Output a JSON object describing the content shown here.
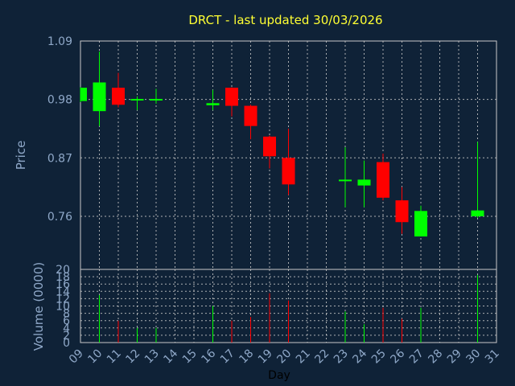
{
  "title": "DRCT - last updated 30/03/2026",
  "colors": {
    "background": "#0f2237",
    "title": "#ffff33",
    "axis_text": "#8fa8c8",
    "up": "#00ff00",
    "down": "#ff0000",
    "grid": "#c8c8c8"
  },
  "chart_data": [
    {
      "type": "candlestick",
      "ylabel": "Price",
      "xlabel": "Day",
      "ylim": [
        0.66,
        1.09
      ],
      "yticks": [
        "0.76",
        "0.87",
        "0.98",
        "1.09"
      ],
      "xlim": [
        9,
        31
      ],
      "xticks": [
        "09",
        "10",
        "11",
        "12",
        "13",
        "14",
        "15",
        "16",
        "17",
        "18",
        "19",
        "20",
        "21",
        "22",
        "23",
        "24",
        "25",
        "26",
        "27",
        "28",
        "29",
        "30",
        "31"
      ],
      "grid": true,
      "candles": [
        {
          "day": 9,
          "open": 0.977,
          "close": 1.002,
          "high": 1.003,
          "low": 0.975
        },
        {
          "day": 10,
          "open": 0.958,
          "close": 1.012,
          "high": 1.07,
          "low": 0.93
        },
        {
          "day": 11,
          "open": 1.002,
          "close": 0.97,
          "high": 1.03,
          "low": 0.965
        },
        {
          "day": 12,
          "open": 0.978,
          "close": 0.981,
          "high": 0.986,
          "low": 0.96
        },
        {
          "day": 13,
          "open": 0.978,
          "close": 0.981,
          "high": 1.0,
          "low": 0.972
        },
        {
          "day": 16,
          "open": 0.969,
          "close": 0.973,
          "high": 0.998,
          "low": 0.96
        },
        {
          "day": 17,
          "open": 1.002,
          "close": 0.968,
          "high": 1.003,
          "low": 0.948
        },
        {
          "day": 18,
          "open": 0.968,
          "close": 0.93,
          "high": 0.97,
          "low": 0.905
        },
        {
          "day": 19,
          "open": 0.91,
          "close": 0.873,
          "high": 0.912,
          "low": 0.85
        },
        {
          "day": 20,
          "open": 0.87,
          "close": 0.82,
          "high": 0.925,
          "low": 0.8
        },
        {
          "day": 23,
          "open": 0.826,
          "close": 0.829,
          "high": 0.89,
          "low": 0.777
        },
        {
          "day": 24,
          "open": 0.818,
          "close": 0.829,
          "high": 0.865,
          "low": 0.777
        },
        {
          "day": 25,
          "open": 0.862,
          "close": 0.795,
          "high": 0.878,
          "low": 0.79
        },
        {
          "day": 26,
          "open": 0.79,
          "close": 0.749,
          "high": 0.815,
          "low": 0.727
        },
        {
          "day": 27,
          "open": 0.722,
          "close": 0.77,
          "high": 0.78,
          "low": 0.722
        },
        {
          "day": 30,
          "open": 0.76,
          "close": 0.771,
          "high": 0.9,
          "low": 0.757
        }
      ]
    },
    {
      "type": "bar",
      "ylabel": "Volume (0000)",
      "xlabel": "Day",
      "ylim": [
        0,
        20
      ],
      "yticks": [
        "0",
        "2",
        "4",
        "6",
        "8",
        "10",
        "12",
        "14",
        "16",
        "18",
        "20"
      ],
      "xlim": [
        9,
        31
      ],
      "bars": [
        {
          "day": 10,
          "value": 13,
          "direction": "up"
        },
        {
          "day": 11,
          "value": 6,
          "direction": "down"
        },
        {
          "day": 12,
          "value": 4,
          "direction": "up"
        },
        {
          "day": 13,
          "value": 4,
          "direction": "up"
        },
        {
          "day": 16,
          "value": 10,
          "direction": "up"
        },
        {
          "day": 17,
          "value": 6,
          "direction": "down"
        },
        {
          "day": 18,
          "value": 7,
          "direction": "down"
        },
        {
          "day": 19,
          "value": 13.5,
          "direction": "down"
        },
        {
          "day": 20,
          "value": 11.5,
          "direction": "down"
        },
        {
          "day": 23,
          "value": 8.5,
          "direction": "up"
        },
        {
          "day": 24,
          "value": 5,
          "direction": "up"
        },
        {
          "day": 25,
          "value": 9.5,
          "direction": "down"
        },
        {
          "day": 26,
          "value": 6.5,
          "direction": "down"
        },
        {
          "day": 27,
          "value": 9.5,
          "direction": "up"
        },
        {
          "day": 30,
          "value": 18.5,
          "direction": "up"
        }
      ]
    }
  ]
}
